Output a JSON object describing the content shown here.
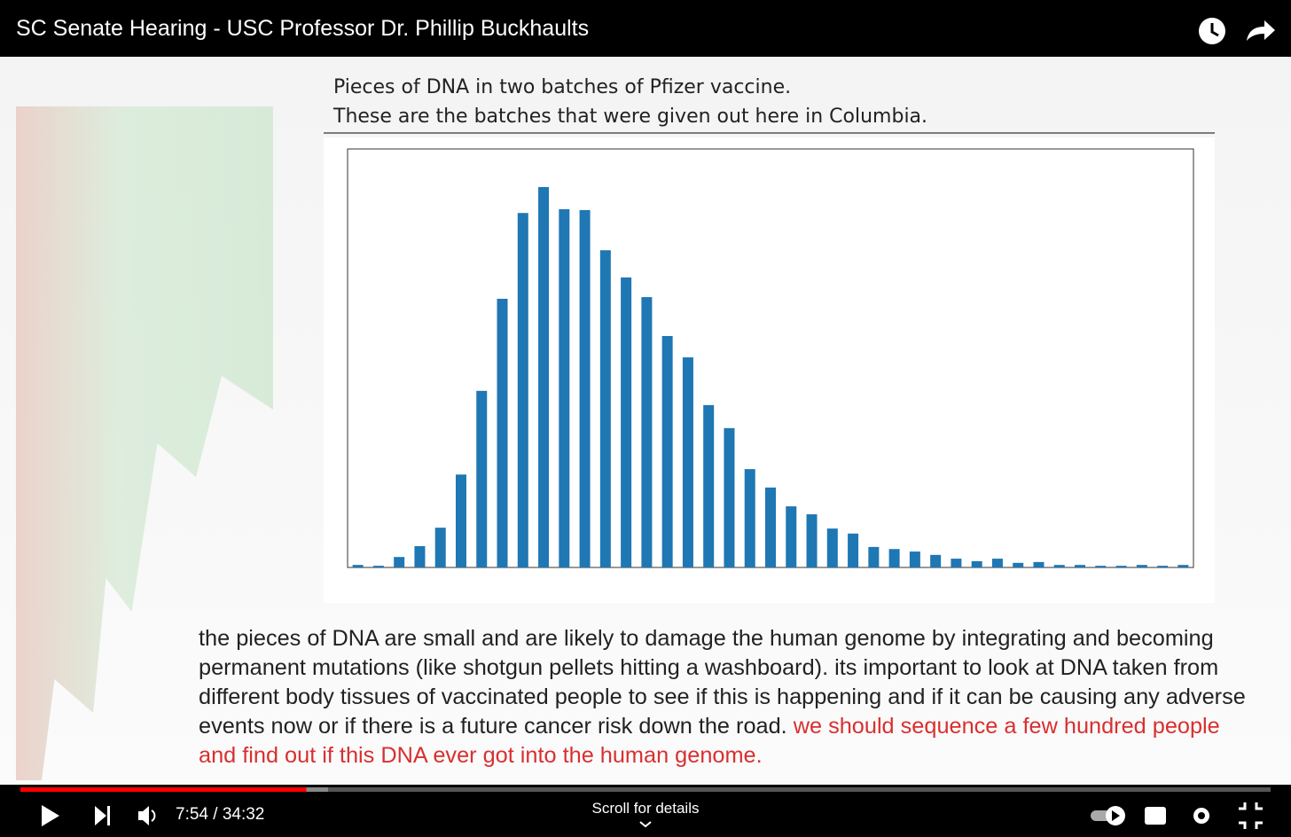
{
  "header": {
    "title": "SC Senate Hearing - USC Professor Dr. Phillip Buckhaults"
  },
  "slide": {
    "heading": [
      "Pieces of DNA in two batches of Pfizer vaccine.",
      "These are the batches that were given out here in Columbia."
    ]
  },
  "chart_data": {
    "type": "bar",
    "color": "#1f77b4",
    "ylim": [
      0,
      100
    ],
    "values": [
      0.6,
      0.4,
      2.5,
      5.1,
      9.5,
      22.2,
      42.2,
      64.2,
      84.7,
      90.9,
      85.6,
      85.4,
      75.8,
      69.3,
      64.6,
      55.3,
      50.2,
      38.8,
      33.3,
      23.5,
      19.1,
      14.6,
      12.7,
      9.3,
      8.1,
      4.9,
      4.4,
      3.8,
      3.0,
      2.1,
      1.5,
      2.1,
      1.1,
      1.3,
      0.6,
      0.6,
      0.4,
      0.4,
      0.6,
      0.4,
      0.6
    ]
  },
  "caption": {
    "text": "the pieces of DNA are small and are likely to damage the human genome by integrating and becoming permanent mutations (like shotgun pellets hitting a washboard).  its important to look at DNA taken from different body tissues of vaccinated people to see if this is happening and if it can be causing any adverse events now or if there is a future cancer risk down the road.",
    "highlight": "we should sequence a few hundred people and find out if this DNA ever got into the human genome."
  },
  "player": {
    "time": "7:54 / 34:32",
    "scroll_hint": "Scroll for details"
  }
}
